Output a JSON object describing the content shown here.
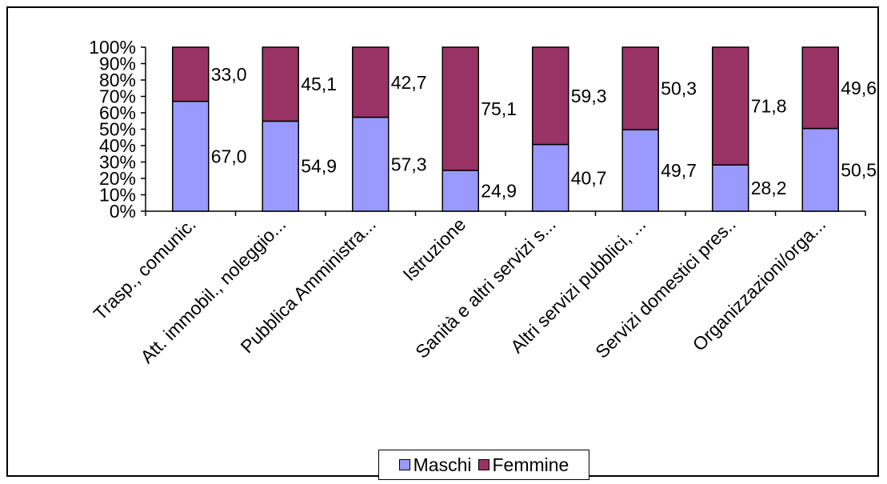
{
  "chart_data": {
    "type": "bar",
    "stacked": "percent",
    "categories": [
      "Trasp., comunic.",
      "Att. immobil., noleggio...",
      "Pubblica Amministra...",
      "Istruzione",
      "Sanità e altri servizi s...",
      "Altri servizi pubblici, ...",
      "Servizi domestici pres..",
      "Organizzazioni/orga..."
    ],
    "series": [
      {
        "name": "Maschi",
        "color": "#9999ff",
        "values": [
          67.0,
          54.9,
          57.3,
          24.9,
          40.7,
          49.7,
          28.2,
          50.5
        ]
      },
      {
        "name": "Femmine",
        "color": "#993366",
        "values": [
          33.0,
          45.1,
          42.7,
          75.1,
          59.3,
          50.3,
          71.8,
          49.6
        ]
      }
    ],
    "data_labels": {
      "Maschi": [
        "67,0",
        "54,9",
        "57,3",
        "24,9",
        "40,7",
        "49,7",
        "28,2",
        "50,5"
      ],
      "Femmine": [
        "33,0",
        "45,1",
        "42,7",
        "75,1",
        "59,3",
        "50,3",
        "71,8",
        "49,6"
      ]
    },
    "y_ticks": [
      "0%",
      "10%",
      "20%",
      "30%",
      "40%",
      "50%",
      "60%",
      "70%",
      "80%",
      "90%",
      "100%"
    ],
    "ylim": [
      0,
      100
    ],
    "grid": false,
    "legend_position": "bottom"
  }
}
